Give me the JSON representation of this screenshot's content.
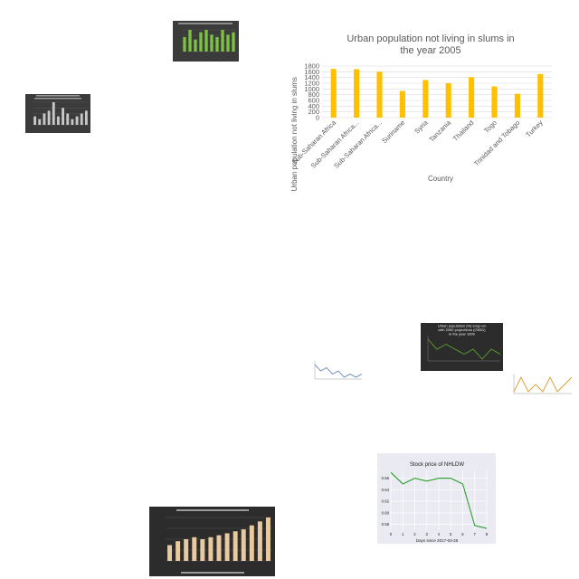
{
  "chart_data": [
    {
      "type": "bar",
      "title": "Urban population not living in slums in the year 2005",
      "xlabel": "Country",
      "ylabel": "No. of Urban population not living in slums",
      "categories": [
        "Sub-Saharan Africa",
        "Sub-Saharan Africa...",
        "Sub-Saharan Africa...",
        "Suriname",
        "Syria",
        "Tanzania",
        "Thailand",
        "Togo",
        "Trinidad and Tobago",
        "Turkey"
      ],
      "values": [
        1700,
        1690,
        1600,
        930,
        1310,
        1200,
        1410,
        1090,
        830,
        1520
      ],
      "ylim": [
        0,
        1800
      ],
      "yticks": [
        "0",
        "200",
        "400",
        "600",
        "800",
        "1000",
        "1200",
        "1400",
        "1600",
        "1800"
      ],
      "grid": true,
      "color": "#ffc000"
    },
    {
      "type": "line",
      "title": "Stock price of NHLDW",
      "xlabel": "Days since 2017-03-28",
      "ylabel": "",
      "x": [
        0,
        1,
        2,
        3,
        4,
        5,
        6,
        7,
        8
      ],
      "y": [
        0.67,
        0.65,
        0.66,
        0.655,
        0.66,
        0.66,
        0.65,
        0.578,
        0.573
      ],
      "xticks": [
        "0",
        "1",
        "2",
        "3",
        "4",
        "5",
        "6",
        "7",
        "8"
      ],
      "yticks": [
        "0.58",
        "0.60",
        "0.62",
        "0.64",
        "0.66"
      ],
      "ylim": [
        0.57,
        0.675
      ],
      "grid": true,
      "color": "#2ca02c"
    }
  ],
  "thumbnails": {
    "green_bars": {
      "values": [
        6,
        9,
        5,
        8,
        9,
        7,
        6,
        9,
        7,
        8
      ],
      "color": "#7dc243"
    },
    "gray_bars": {
      "values": [
        3,
        2,
        4,
        5,
        8,
        3,
        6,
        4,
        2,
        3,
        4,
        5
      ],
      "color": "#c8c8c8"
    },
    "green_line": {
      "title": "Urban population (%) long-run with 2050 projections (OWID) in the year 1990",
      "values": [
        7,
        6,
        6.5,
        6,
        5.5,
        6,
        5,
        6,
        5.5
      ],
      "color": "#5aa02c"
    },
    "blue_line": {
      "values": [
        8,
        7,
        7.5,
        6.5,
        7,
        6,
        6.5,
        6,
        6.5
      ],
      "color": "#5b7fb5"
    },
    "orange_line": {
      "values": [
        6,
        7,
        6,
        6.5,
        6,
        7,
        6,
        6.5,
        7
      ],
      "color": "#d99a2b"
    },
    "tan_bars": {
      "values": [
        4,
        5,
        5.5,
        6,
        5.5,
        6,
        6.5,
        7,
        7.5,
        8,
        9,
        10,
        11
      ],
      "color": "#e8c9a0"
    }
  }
}
